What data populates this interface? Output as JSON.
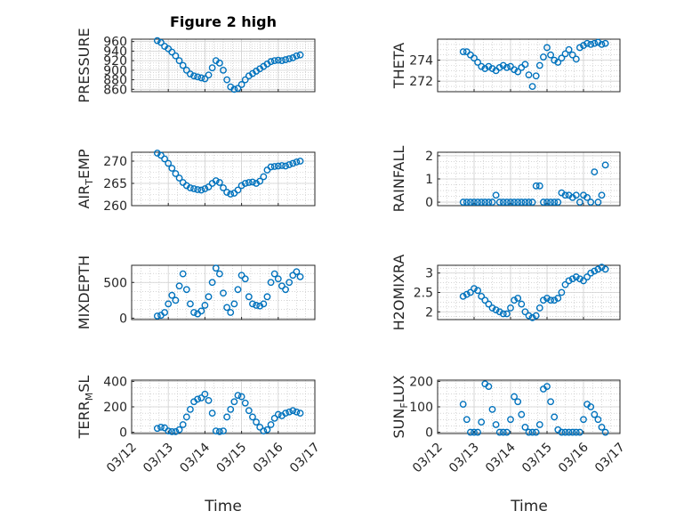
{
  "title": "Figure 2 high",
  "colors": {
    "marker": "#0072BD",
    "axis": "#262626",
    "grid": "#bdbdbd"
  },
  "x_axis": {
    "label": "Time",
    "range": [
      "03/12",
      "03/17"
    ],
    "ticks": [
      "03/12",
      "03/13",
      "03/14",
      "03/15",
      "03/16",
      "03/17"
    ]
  },
  "chart_data": [
    {
      "type": "scatter",
      "ylabel": "PRESSURE",
      "ylabel_sub": "",
      "ylabel_end": "",
      "ylim": [
        855,
        965
      ],
      "yticks": [
        860,
        880,
        900,
        920,
        940,
        960
      ],
      "xlim": [
        "03/12",
        "03/17"
      ],
      "grid": true,
      "x": [
        12.7,
        12.8,
        12.9,
        13.0,
        13.1,
        13.2,
        13.3,
        13.4,
        13.5,
        13.6,
        13.7,
        13.8,
        13.9,
        14.0,
        14.1,
        14.2,
        14.3,
        14.4,
        14.5,
        14.6,
        14.7,
        14.8,
        14.9,
        15.0,
        15.1,
        15.2,
        15.3,
        15.4,
        15.5,
        15.6,
        15.7,
        15.8,
        15.9,
        16.0,
        16.1,
        16.2,
        16.3,
        16.4,
        16.5,
        16.6
      ],
      "y": [
        962,
        958,
        950,
        945,
        938,
        930,
        920,
        910,
        900,
        892,
        888,
        886,
        884,
        882,
        890,
        905,
        920,
        915,
        900,
        880,
        865,
        860,
        862,
        870,
        880,
        888,
        893,
        898,
        903,
        908,
        913,
        918,
        920,
        921,
        920,
        922,
        924,
        926,
        930,
        932
      ]
    },
    {
      "type": "scatter",
      "ylabel": "THETA",
      "ylabel_sub": "",
      "ylabel_end": "",
      "ylim": [
        271,
        276
      ],
      "yticks": [
        272,
        274
      ],
      "xlim": [
        "03/12",
        "03/17"
      ],
      "grid": true,
      "x": [
        12.7,
        12.8,
        12.9,
        13.0,
        13.1,
        13.2,
        13.3,
        13.4,
        13.5,
        13.6,
        13.7,
        13.8,
        13.9,
        14.0,
        14.1,
        14.2,
        14.3,
        14.4,
        14.5,
        14.6,
        14.7,
        14.8,
        14.9,
        15.0,
        15.1,
        15.2,
        15.3,
        15.4,
        15.5,
        15.6,
        15.7,
        15.8,
        15.9,
        16.0,
        16.1,
        16.2,
        16.3,
        16.4,
        16.5,
        16.6
      ],
      "y": [
        274.8,
        274.8,
        274.5,
        274.2,
        273.8,
        273.4,
        273.2,
        273.4,
        273.2,
        273.0,
        273.3,
        273.5,
        273.3,
        273.4,
        273.1,
        272.9,
        273.3,
        273.6,
        272.6,
        271.5,
        272.5,
        273.5,
        274.3,
        275.2,
        274.5,
        274.0,
        273.8,
        274.2,
        274.6,
        275.0,
        274.5,
        274.1,
        275.2,
        275.4,
        275.6,
        275.5,
        275.6,
        275.7,
        275.5,
        275.6
      ]
    },
    {
      "type": "scatter",
      "ylabel": "AIR",
      "ylabel_sub": "T",
      "ylabel_end": "EMP",
      "ylim": [
        260,
        272
      ],
      "yticks": [
        260,
        265,
        270
      ],
      "xlim": [
        "03/12",
        "03/17"
      ],
      "grid": true,
      "x": [
        12.7,
        12.8,
        12.9,
        13.0,
        13.1,
        13.2,
        13.3,
        13.4,
        13.5,
        13.6,
        13.7,
        13.8,
        13.9,
        14.0,
        14.1,
        14.2,
        14.3,
        14.4,
        14.5,
        14.6,
        14.7,
        14.8,
        14.9,
        15.0,
        15.1,
        15.2,
        15.3,
        15.4,
        15.5,
        15.6,
        15.7,
        15.8,
        15.9,
        16.0,
        16.1,
        16.2,
        16.3,
        16.4,
        16.5,
        16.6
      ],
      "y": [
        271.8,
        271.3,
        270.5,
        269.5,
        268.4,
        267.2,
        266.2,
        265.2,
        264.5,
        264.0,
        263.8,
        263.6,
        263.5,
        263.8,
        264.2,
        265.0,
        265.6,
        265.2,
        264.0,
        263.0,
        262.6,
        262.8,
        263.5,
        264.5,
        265.0,
        265.2,
        265.3,
        265.0,
        265.5,
        266.5,
        268.0,
        268.7,
        268.8,
        268.9,
        269.0,
        268.9,
        269.2,
        269.5,
        269.8,
        270.0
      ]
    },
    {
      "type": "scatter",
      "ylabel": "RAINFALL",
      "ylabel_sub": "",
      "ylabel_end": "",
      "ylim": [
        -0.15,
        2.15
      ],
      "yticks": [
        0,
        1,
        2
      ],
      "xlim": [
        "03/12",
        "03/17"
      ],
      "grid": true,
      "x": [
        12.7,
        12.8,
        12.9,
        13.0,
        13.1,
        13.2,
        13.3,
        13.4,
        13.5,
        13.6,
        13.7,
        13.8,
        13.9,
        14.0,
        14.1,
        14.2,
        14.3,
        14.4,
        14.5,
        14.6,
        14.7,
        14.8,
        14.9,
        15.0,
        15.1,
        15.2,
        15.3,
        15.4,
        15.5,
        15.6,
        15.7,
        15.8,
        15.9,
        16.0,
        16.1,
        16.2,
        16.3,
        16.4,
        16.5,
        16.6
      ],
      "y": [
        0,
        0,
        0,
        0,
        0,
        0,
        0,
        0,
        0,
        0.3,
        0,
        0,
        0,
        0,
        0,
        0,
        0,
        0,
        0,
        0,
        0.7,
        0.7,
        0,
        0,
        0,
        0,
        0,
        0.4,
        0.3,
        0.3,
        0.2,
        0.3,
        0,
        0.3,
        0.2,
        0,
        1.3,
        0,
        0.3,
        1.6
      ]
    },
    {
      "type": "scatter",
      "ylabel": "MIXDEPTH",
      "ylabel_sub": "",
      "ylabel_end": "",
      "ylim": [
        -20,
        740
      ],
      "yticks": [
        0,
        500
      ],
      "xlim": [
        "03/12",
        "03/17"
      ],
      "grid": true,
      "x": [
        12.7,
        12.8,
        12.9,
        13.0,
        13.1,
        13.2,
        13.3,
        13.4,
        13.5,
        13.6,
        13.7,
        13.8,
        13.9,
        14.0,
        14.1,
        14.2,
        14.3,
        14.4,
        14.5,
        14.6,
        14.7,
        14.8,
        14.9,
        15.0,
        15.1,
        15.2,
        15.3,
        15.4,
        15.5,
        15.6,
        15.7,
        15.8,
        15.9,
        16.0,
        16.1,
        16.2,
        16.3,
        16.4,
        16.5,
        16.6
      ],
      "y": [
        30,
        40,
        80,
        200,
        320,
        250,
        450,
        620,
        400,
        200,
        80,
        60,
        100,
        180,
        300,
        500,
        700,
        620,
        350,
        150,
        80,
        200,
        400,
        600,
        550,
        300,
        200,
        180,
        170,
        200,
        300,
        500,
        620,
        550,
        450,
        400,
        500,
        600,
        650,
        580
      ]
    },
    {
      "type": "scatter",
      "ylabel": "H2OMIXRA",
      "ylabel_sub": "",
      "ylabel_end": "",
      "ylim": [
        1.8,
        3.2
      ],
      "yticks": [
        2,
        2.5,
        3
      ],
      "xlim": [
        "03/12",
        "03/17"
      ],
      "grid": true,
      "x": [
        12.7,
        12.8,
        12.9,
        13.0,
        13.1,
        13.2,
        13.3,
        13.4,
        13.5,
        13.6,
        13.7,
        13.8,
        13.9,
        14.0,
        14.1,
        14.2,
        14.3,
        14.4,
        14.5,
        14.6,
        14.7,
        14.8,
        14.9,
        15.0,
        15.1,
        15.2,
        15.3,
        15.4,
        15.5,
        15.6,
        15.7,
        15.8,
        15.9,
        16.0,
        16.1,
        16.2,
        16.3,
        16.4,
        16.5,
        16.6
      ],
      "y": [
        2.4,
        2.45,
        2.5,
        2.6,
        2.55,
        2.4,
        2.3,
        2.2,
        2.1,
        2.05,
        2.0,
        1.95,
        1.95,
        2.1,
        2.3,
        2.35,
        2.2,
        2.0,
        1.9,
        1.85,
        1.9,
        2.1,
        2.3,
        2.35,
        2.3,
        2.3,
        2.35,
        2.5,
        2.7,
        2.8,
        2.85,
        2.9,
        2.85,
        2.8,
        2.9,
        3.0,
        3.05,
        3.1,
        3.15,
        3.1
      ]
    },
    {
      "type": "scatter",
      "ylabel": "TERR",
      "ylabel_sub": "M",
      "ylabel_end": "SL",
      "ylim": [
        -10,
        410
      ],
      "yticks": [
        0,
        200,
        400
      ],
      "xlim": [
        "03/12",
        "03/17"
      ],
      "grid": true,
      "x": [
        12.7,
        12.8,
        12.9,
        13.0,
        13.1,
        13.2,
        13.3,
        13.4,
        13.5,
        13.6,
        13.7,
        13.8,
        13.9,
        14.0,
        14.1,
        14.2,
        14.3,
        14.4,
        14.5,
        14.6,
        14.7,
        14.8,
        14.9,
        15.0,
        15.1,
        15.2,
        15.3,
        15.4,
        15.5,
        15.6,
        15.7,
        15.8,
        15.9,
        16.0,
        16.1,
        16.2,
        16.3,
        16.4,
        16.5,
        16.6
      ],
      "y": [
        30,
        40,
        35,
        10,
        5,
        5,
        20,
        60,
        120,
        180,
        240,
        260,
        270,
        300,
        250,
        150,
        10,
        5,
        10,
        120,
        180,
        240,
        290,
        280,
        230,
        170,
        120,
        80,
        40,
        10,
        20,
        60,
        110,
        140,
        130,
        150,
        160,
        170,
        160,
        150
      ]
    },
    {
      "type": "scatter",
      "ylabel": "SUN",
      "ylabel_sub": "F",
      "ylabel_end": "LUX",
      "ylim": [
        -5,
        205
      ],
      "yticks": [
        0,
        100,
        200
      ],
      "xlim": [
        "03/12",
        "03/17"
      ],
      "grid": true,
      "x": [
        12.7,
        12.8,
        12.9,
        13.0,
        13.1,
        13.2,
        13.3,
        13.4,
        13.5,
        13.6,
        13.7,
        13.8,
        13.9,
        14.0,
        14.1,
        14.2,
        14.3,
        14.4,
        14.5,
        14.6,
        14.7,
        14.8,
        14.9,
        15.0,
        15.1,
        15.2,
        15.3,
        15.4,
        15.5,
        15.6,
        15.7,
        15.8,
        15.9,
        16.0,
        16.1,
        16.2,
        16.3,
        16.4,
        16.5,
        16.6
      ],
      "y": [
        110,
        50,
        0,
        0,
        0,
        40,
        190,
        180,
        90,
        30,
        0,
        0,
        0,
        50,
        140,
        120,
        70,
        20,
        0,
        0,
        0,
        30,
        170,
        180,
        120,
        60,
        10,
        0,
        0,
        0,
        0,
        0,
        0,
        50,
        110,
        100,
        70,
        50,
        20,
        0
      ]
    }
  ]
}
